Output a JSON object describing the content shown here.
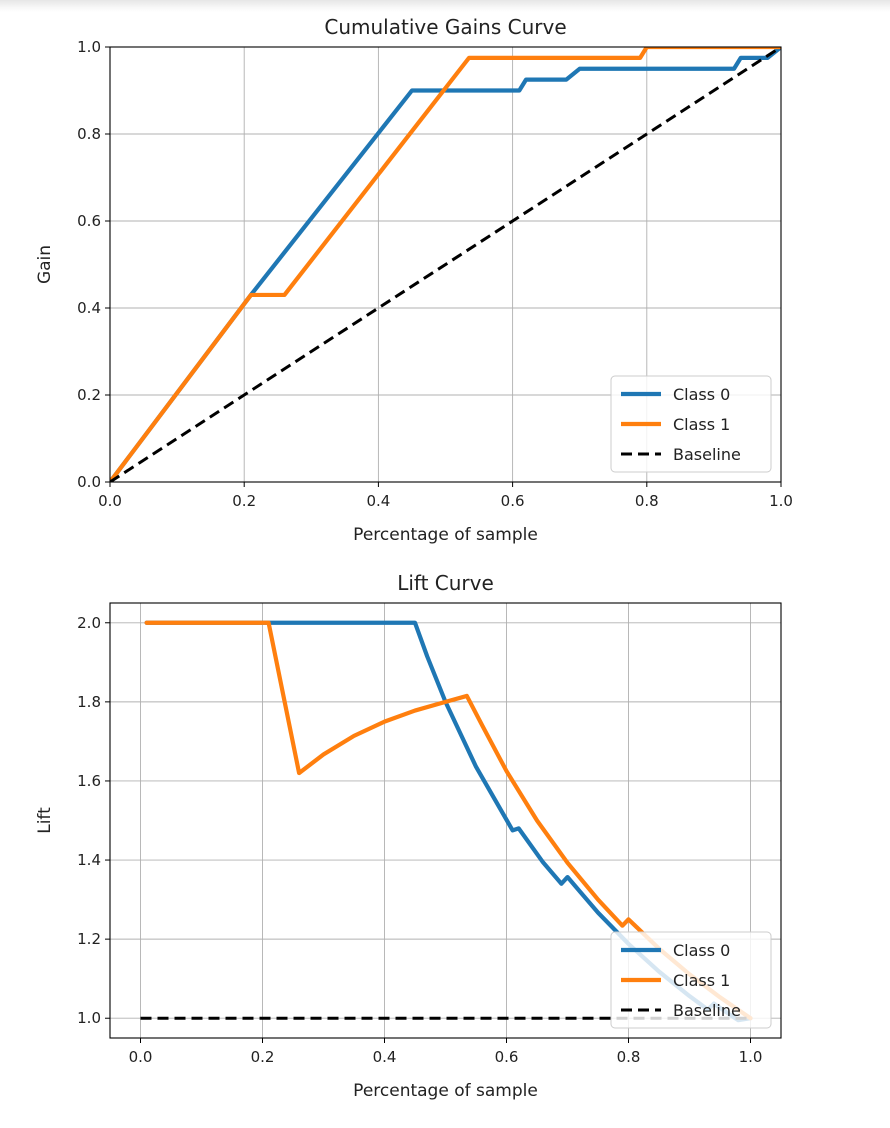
{
  "colors": {
    "class0": "#1f77b4",
    "class1": "#ff7f0e",
    "baseline": "#000000"
  },
  "chart_data": [
    {
      "type": "line",
      "title": "Cumulative Gains Curve",
      "xlabel": "Percentage of sample",
      "ylabel": "Gain",
      "xlim": [
        0,
        1
      ],
      "ylim": [
        0,
        1
      ],
      "xticks": [
        "0.0",
        "0.2",
        "0.4",
        "0.6",
        "0.8",
        "1.0"
      ],
      "yticks": [
        "0.0",
        "0.2",
        "0.4",
        "0.6",
        "0.8",
        "1.0"
      ],
      "grid": true,
      "legend_position": "lower-right",
      "series": [
        {
          "name": "Class 0",
          "color": "class0",
          "style": "solid",
          "points": [
            [
              0,
              0
            ],
            [
              0.21,
              0.43
            ],
            [
              0.45,
              0.9
            ],
            [
              0.61,
              0.9
            ],
            [
              0.62,
              0.925
            ],
            [
              0.68,
              0.925
            ],
            [
              0.7,
              0.95
            ],
            [
              0.93,
              0.95
            ],
            [
              0.94,
              0.975
            ],
            [
              0.98,
              0.975
            ],
            [
              1.0,
              1.0
            ]
          ]
        },
        {
          "name": "Class 1",
          "color": "class1",
          "style": "solid",
          "points": [
            [
              0,
              0
            ],
            [
              0.21,
              0.43
            ],
            [
              0.26,
              0.43
            ],
            [
              0.535,
              0.975
            ],
            [
              0.79,
              0.975
            ],
            [
              0.8,
              1.0
            ],
            [
              1.0,
              1.0
            ]
          ]
        },
        {
          "name": "Baseline",
          "color": "baseline",
          "style": "dashed",
          "points": [
            [
              0,
              0
            ],
            [
              1,
              1
            ]
          ]
        }
      ]
    },
    {
      "type": "line",
      "title": "Lift Curve",
      "xlabel": "Percentage of sample",
      "ylabel": "Lift",
      "xlim": [
        -0.05,
        1.05
      ],
      "ylim": [
        0.95,
        2.05
      ],
      "xticks": [
        "0.0",
        "0.2",
        "0.4",
        "0.6",
        "0.8",
        "1.0"
      ],
      "yticks": [
        "1.0",
        "1.2",
        "1.4",
        "1.6",
        "1.8",
        "2.0"
      ],
      "grid": true,
      "legend_position": "lower-right",
      "series": [
        {
          "name": "Class 0",
          "color": "class0",
          "style": "solid",
          "points": [
            [
              0.01,
              2.0
            ],
            [
              0.45,
              2.0
            ],
            [
              0.47,
              1.915
            ],
            [
              0.5,
              1.8
            ],
            [
              0.55,
              1.636
            ],
            [
              0.61,
              1.475
            ],
            [
              0.62,
              1.48
            ],
            [
              0.66,
              1.394
            ],
            [
              0.69,
              1.34
            ],
            [
              0.7,
              1.357
            ],
            [
              0.75,
              1.267
            ],
            [
              0.8,
              1.188
            ],
            [
              0.85,
              1.118
            ],
            [
              0.9,
              1.056
            ],
            [
              0.93,
              1.022
            ],
            [
              0.94,
              1.037
            ],
            [
              0.97,
              1.005
            ],
            [
              0.98,
              0.995
            ],
            [
              1.0,
              1.0
            ]
          ]
        },
        {
          "name": "Class 1",
          "color": "class1",
          "style": "solid",
          "points": [
            [
              0.01,
              2.0
            ],
            [
              0.21,
              2.0
            ],
            [
              0.26,
              1.62
            ],
            [
              0.3,
              1.667
            ],
            [
              0.35,
              1.714
            ],
            [
              0.4,
              1.75
            ],
            [
              0.45,
              1.778
            ],
            [
              0.5,
              1.8
            ],
            [
              0.535,
              1.815
            ],
            [
              0.56,
              1.741
            ],
            [
              0.6,
              1.625
            ],
            [
              0.65,
              1.5
            ],
            [
              0.7,
              1.393
            ],
            [
              0.75,
              1.3
            ],
            [
              0.79,
              1.234
            ],
            [
              0.8,
              1.25
            ],
            [
              0.85,
              1.176
            ],
            [
              0.9,
              1.111
            ],
            [
              0.95,
              1.053
            ],
            [
              1.0,
              1.0
            ]
          ]
        },
        {
          "name": "Baseline",
          "color": "baseline",
          "style": "dashed",
          "points": [
            [
              0.0,
              1.0
            ],
            [
              1.0,
              1.0
            ]
          ]
        }
      ]
    }
  ]
}
